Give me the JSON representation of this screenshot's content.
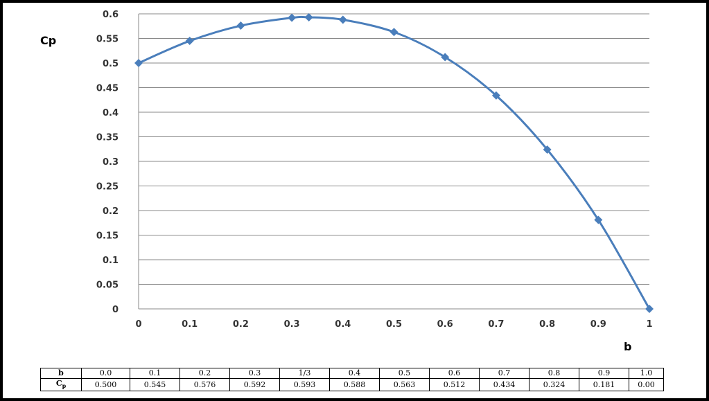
{
  "chart_data": {
    "type": "line",
    "ylabel": "Cp",
    "xlabel": "b",
    "xlim": [
      0,
      1
    ],
    "ylim": [
      0,
      0.6
    ],
    "x_ticks": [
      "0",
      "0.1",
      "0.2",
      "0.3",
      "0.4",
      "0.5",
      "0.6",
      "0.7",
      "0.8",
      "0.9",
      "1"
    ],
    "y_ticks": [
      "0",
      "0.05",
      "0.1",
      "0.15",
      "0.2",
      "0.25",
      "0.3",
      "0.35",
      "0.4",
      "0.45",
      "0.5",
      "0.55",
      "0.6"
    ],
    "grid": true,
    "series": [
      {
        "x": [
          0,
          0.1,
          0.2,
          0.3,
          0.3333,
          0.4,
          0.5,
          0.6,
          0.7,
          0.8,
          0.9,
          1.0
        ],
        "y": [
          0.5,
          0.545,
          0.576,
          0.592,
          0.593,
          0.588,
          0.563,
          0.512,
          0.434,
          0.324,
          0.181,
          0.0
        ]
      }
    ],
    "color": "#4a7ebb"
  },
  "table": {
    "row1_header": "b",
    "row1": [
      "0.0",
      "0.1",
      "0.2",
      "0.3",
      "1/3",
      "0.4",
      "0.5",
      "0.6",
      "0.7",
      "0.8",
      "0.9",
      "1.0"
    ],
    "row2_header": "C",
    "row2_header_sub": "p",
    "row2": [
      "0.500",
      "0.545",
      "0.576",
      "0.592",
      "0.593",
      "0.588",
      "0.563",
      "0.512",
      "0.434",
      "0.324",
      "0.181",
      "0.00"
    ]
  }
}
